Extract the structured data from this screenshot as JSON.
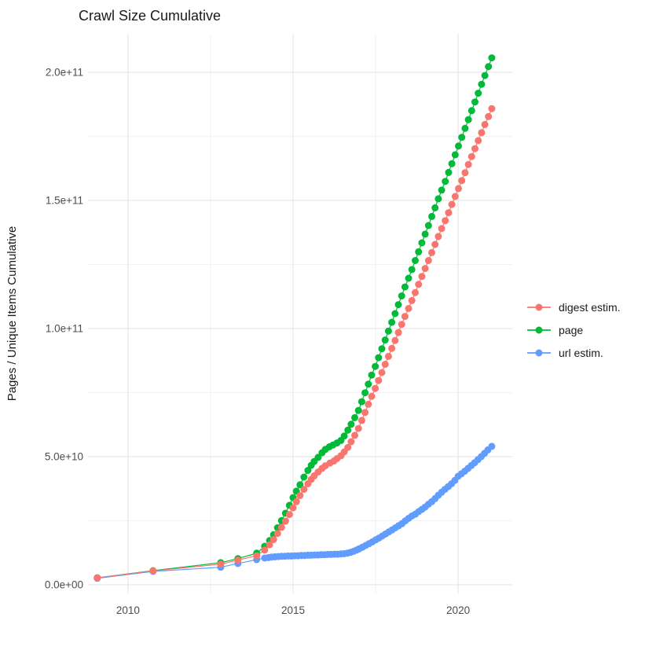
{
  "title": "Crawl Size Cumulative",
  "y_axis_title": "Pages / Unique Items Cumulative",
  "legend": {
    "items": [
      {
        "label": "digest estim.",
        "color": "#F8766D"
      },
      {
        "label": "page",
        "color": "#00BA38"
      },
      {
        "label": "url estim.",
        "color": "#619CFF"
      }
    ]
  },
  "colors": {
    "digest": "#F8766D",
    "page": "#00BA38",
    "url": "#619CFF",
    "grid_major": "#e5e5e5",
    "grid_minor": "#f0f0f0",
    "tick_text": "#4d4d4d",
    "title_text": "#1a1a1a",
    "background": "#ffffff"
  },
  "chart_data": {
    "type": "line",
    "title": "Crawl Size Cumulative",
    "xlabel": "",
    "ylabel": "Pages / Unique Items Cumulative",
    "grid": true,
    "legend_position": "right",
    "value_unit": "1e9 (values below are billions of pages / items)",
    "x_range": [
      2008.79,
      2021.64
    ],
    "y_range_e9": [
      -3.4,
      215
    ],
    "x_ticks": {
      "values": [
        2010,
        2015,
        2020
      ],
      "labels": [
        "2010",
        "2015",
        "2020"
      ]
    },
    "x_minor_ticks": [
      2012.5,
      2017.5
    ],
    "y_ticks": {
      "values_e9": [
        0,
        50,
        100,
        150,
        200
      ],
      "labels": [
        "0.0e+00",
        "5.0e+10",
        "1.0e+11",
        "1.5e+11",
        "2.0e+11"
      ]
    },
    "y_minor_ticks_e9": [
      25,
      75,
      125,
      175
    ],
    "draw_order": [
      "page",
      "url estim.",
      "digest estim."
    ],
    "series": [
      {
        "name": "digest estim.",
        "color": "#F8766D",
        "points": [
          [
            2009.07,
            2.7
          ],
          [
            2010.76,
            5.4
          ],
          [
            2012.81,
            8.0
          ],
          [
            2013.33,
            9.6
          ],
          [
            2013.9,
            11.3
          ],
          [
            2014.14,
            13.5
          ],
          [
            2014.29,
            15.6
          ],
          [
            2014.41,
            17.6
          ],
          [
            2014.53,
            20.0
          ],
          [
            2014.65,
            22.4
          ],
          [
            2014.77,
            24.8
          ],
          [
            2014.89,
            27.4
          ],
          [
            2015.0,
            30.0
          ],
          [
            2015.1,
            32.4
          ],
          [
            2015.21,
            34.8
          ],
          [
            2015.33,
            37.2
          ],
          [
            2015.45,
            39.4
          ],
          [
            2015.55,
            41.1
          ],
          [
            2015.64,
            42.5
          ],
          [
            2015.76,
            44.0
          ],
          [
            2015.88,
            45.4
          ],
          [
            2015.98,
            46.4
          ],
          [
            2016.12,
            47.5
          ],
          [
            2016.24,
            48.3
          ],
          [
            2016.33,
            49.2
          ],
          [
            2016.45,
            50.3
          ],
          [
            2016.55,
            51.8
          ],
          [
            2016.66,
            53.6
          ],
          [
            2016.76,
            55.8
          ],
          [
            2016.87,
            58.3
          ],
          [
            2016.98,
            61.0
          ],
          [
            2017.08,
            64.1
          ],
          [
            2017.18,
            67.2
          ],
          [
            2017.28,
            70.4
          ],
          [
            2017.38,
            73.5
          ],
          [
            2017.49,
            76.6
          ],
          [
            2017.59,
            79.7
          ],
          [
            2017.69,
            82.8
          ],
          [
            2017.79,
            86.0
          ],
          [
            2017.89,
            89.1
          ],
          [
            2017.99,
            92.2
          ],
          [
            2018.09,
            95.3
          ],
          [
            2018.19,
            98.4
          ],
          [
            2018.29,
            101.6
          ],
          [
            2018.39,
            104.7
          ],
          [
            2018.5,
            107.8
          ],
          [
            2018.6,
            110.9
          ],
          [
            2018.7,
            114.0
          ],
          [
            2018.8,
            117.2
          ],
          [
            2018.9,
            120.3
          ],
          [
            2019.0,
            123.4
          ],
          [
            2019.1,
            126.5
          ],
          [
            2019.2,
            129.6
          ],
          [
            2019.3,
            132.8
          ],
          [
            2019.4,
            135.9
          ],
          [
            2019.5,
            139.0
          ],
          [
            2019.61,
            142.1
          ],
          [
            2019.71,
            145.2
          ],
          [
            2019.81,
            148.4
          ],
          [
            2019.91,
            151.5
          ],
          [
            2020.01,
            154.6
          ],
          [
            2020.11,
            157.7
          ],
          [
            2020.21,
            160.8
          ],
          [
            2020.31,
            164.0
          ],
          [
            2020.41,
            167.1
          ],
          [
            2020.51,
            170.2
          ],
          [
            2020.61,
            173.3
          ],
          [
            2020.71,
            176.4
          ],
          [
            2020.81,
            179.6
          ],
          [
            2020.92,
            182.7
          ],
          [
            2021.02,
            185.8
          ]
        ]
      },
      {
        "name": "page",
        "color": "#00BA38",
        "points": [
          [
            2009.07,
            2.7
          ],
          [
            2010.76,
            5.5
          ],
          [
            2012.81,
            8.6
          ],
          [
            2013.33,
            10.2
          ],
          [
            2013.9,
            12.3
          ],
          [
            2014.14,
            15.0
          ],
          [
            2014.29,
            17.2
          ],
          [
            2014.41,
            19.5
          ],
          [
            2014.53,
            22.2
          ],
          [
            2014.65,
            25.0
          ],
          [
            2014.77,
            27.9
          ],
          [
            2014.89,
            31.0
          ],
          [
            2015.0,
            34.0
          ],
          [
            2015.1,
            36.5
          ],
          [
            2015.21,
            39.0
          ],
          [
            2015.33,
            42.0
          ],
          [
            2015.45,
            44.6
          ],
          [
            2015.55,
            46.6
          ],
          [
            2015.64,
            48.1
          ],
          [
            2015.76,
            49.7
          ],
          [
            2015.88,
            51.5
          ],
          [
            2015.98,
            52.8
          ],
          [
            2016.1,
            53.8
          ],
          [
            2016.21,
            54.5
          ],
          [
            2016.33,
            55.3
          ],
          [
            2016.45,
            56.3
          ],
          [
            2016.55,
            58.0
          ],
          [
            2016.66,
            60.3
          ],
          [
            2016.76,
            62.6
          ],
          [
            2016.87,
            65.2
          ],
          [
            2016.98,
            68.0
          ],
          [
            2017.08,
            71.4
          ],
          [
            2017.18,
            74.9
          ],
          [
            2017.28,
            78.3
          ],
          [
            2017.38,
            81.8
          ],
          [
            2017.49,
            85.2
          ],
          [
            2017.59,
            88.6
          ],
          [
            2017.69,
            92.1
          ],
          [
            2017.79,
            95.5
          ],
          [
            2017.89,
            99.0
          ],
          [
            2017.99,
            102.4
          ],
          [
            2018.09,
            105.8
          ],
          [
            2018.19,
            109.3
          ],
          [
            2018.29,
            112.7
          ],
          [
            2018.39,
            116.2
          ],
          [
            2018.5,
            119.6
          ],
          [
            2018.6,
            123.0
          ],
          [
            2018.7,
            126.5
          ],
          [
            2018.8,
            129.9
          ],
          [
            2018.9,
            133.4
          ],
          [
            2019.0,
            136.8
          ],
          [
            2019.1,
            140.2
          ],
          [
            2019.2,
            143.7
          ],
          [
            2019.3,
            147.1
          ],
          [
            2019.4,
            150.6
          ],
          [
            2019.5,
            154.0
          ],
          [
            2019.61,
            157.4
          ],
          [
            2019.71,
            160.9
          ],
          [
            2019.81,
            164.3
          ],
          [
            2019.91,
            167.8
          ],
          [
            2020.01,
            171.2
          ],
          [
            2020.11,
            174.6
          ],
          [
            2020.21,
            178.1
          ],
          [
            2020.31,
            181.5
          ],
          [
            2020.41,
            185.0
          ],
          [
            2020.51,
            188.4
          ],
          [
            2020.61,
            191.8
          ],
          [
            2020.71,
            195.3
          ],
          [
            2020.81,
            198.7
          ],
          [
            2020.92,
            202.2
          ],
          [
            2021.02,
            205.6
          ]
        ]
      },
      {
        "name": "url estim.",
        "color": "#619CFF",
        "points": [
          [
            2009.07,
            2.5
          ],
          [
            2010.76,
            5.2
          ],
          [
            2012.81,
            6.8
          ],
          [
            2013.33,
            8.3
          ],
          [
            2013.9,
            9.8
          ],
          [
            2014.14,
            10.4
          ],
          [
            2014.25,
            10.6
          ],
          [
            2014.35,
            10.8
          ],
          [
            2014.45,
            10.9
          ],
          [
            2014.55,
            11.0
          ],
          [
            2014.65,
            11.1
          ],
          [
            2014.75,
            11.1
          ],
          [
            2014.85,
            11.2
          ],
          [
            2014.95,
            11.2
          ],
          [
            2015.05,
            11.3
          ],
          [
            2015.15,
            11.3
          ],
          [
            2015.25,
            11.4
          ],
          [
            2015.35,
            11.4
          ],
          [
            2015.45,
            11.5
          ],
          [
            2015.55,
            11.5
          ],
          [
            2015.65,
            11.6
          ],
          [
            2015.75,
            11.6
          ],
          [
            2015.85,
            11.7
          ],
          [
            2015.95,
            11.7
          ],
          [
            2016.05,
            11.8
          ],
          [
            2016.15,
            11.8
          ],
          [
            2016.25,
            11.9
          ],
          [
            2016.35,
            11.9
          ],
          [
            2016.45,
            12.0
          ],
          [
            2016.55,
            12.1
          ],
          [
            2016.65,
            12.3
          ],
          [
            2016.74,
            12.6
          ],
          [
            2016.83,
            13.0
          ],
          [
            2016.92,
            13.5
          ],
          [
            2017.0,
            14.0
          ],
          [
            2017.1,
            14.6
          ],
          [
            2017.2,
            15.3
          ],
          [
            2017.3,
            16.0
          ],
          [
            2017.4,
            16.7
          ],
          [
            2017.5,
            17.5
          ],
          [
            2017.6,
            18.2
          ],
          [
            2017.7,
            19.0
          ],
          [
            2017.8,
            19.8
          ],
          [
            2017.9,
            20.6
          ],
          [
            2018.0,
            21.4
          ],
          [
            2018.1,
            22.2
          ],
          [
            2018.2,
            23.0
          ],
          [
            2018.3,
            23.8
          ],
          [
            2018.4,
            24.9
          ],
          [
            2018.5,
            25.9
          ],
          [
            2018.6,
            26.8
          ],
          [
            2018.7,
            27.5
          ],
          [
            2018.8,
            28.5
          ],
          [
            2018.9,
            29.4
          ],
          [
            2019.0,
            30.3
          ],
          [
            2019.1,
            31.4
          ],
          [
            2019.2,
            32.4
          ],
          [
            2019.3,
            33.6
          ],
          [
            2019.4,
            34.9
          ],
          [
            2019.5,
            36.1
          ],
          [
            2019.6,
            37.2
          ],
          [
            2019.7,
            38.3
          ],
          [
            2019.8,
            39.4
          ],
          [
            2019.9,
            40.7
          ],
          [
            2020.0,
            42.3
          ],
          [
            2020.1,
            43.3
          ],
          [
            2020.2,
            44.3
          ],
          [
            2020.3,
            45.4
          ],
          [
            2020.4,
            46.5
          ],
          [
            2020.5,
            47.6
          ],
          [
            2020.6,
            48.8
          ],
          [
            2020.7,
            50.0
          ],
          [
            2020.8,
            51.3
          ],
          [
            2020.9,
            52.6
          ],
          [
            2021.02,
            54.0
          ]
        ]
      }
    ]
  }
}
